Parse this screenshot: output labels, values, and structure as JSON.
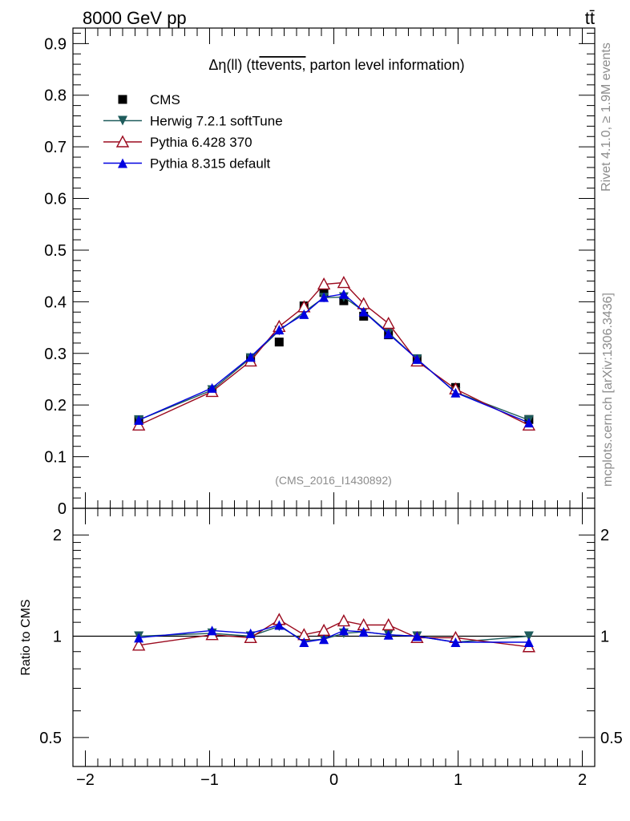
{
  "header": {
    "energy_label": "8000 GeV pp",
    "process_label": "tt̄"
  },
  "side": {
    "rivet_label": "Rivet 4.1.0, ≥ 1.9M events",
    "mcplots_label": "mcplots.cern.ch [arXiv:1306.3436]"
  },
  "chart_data": {
    "type": "line",
    "title_parts": {
      "prefix": "Δη(ll) (",
      "tt": "tt",
      "over": "events,",
      "suffix": " parton level information)"
    },
    "watermark": "(CMS_2016_I1430892)",
    "ratio_ylabel": "Ratio to CMS",
    "xlim": [
      -2.1,
      2.1
    ],
    "ylim_main": [
      0,
      0.93
    ],
    "ylim_ratio": [
      0.41,
      2.4
    ],
    "x_ticks": [
      "−2",
      "−1",
      "0",
      "1",
      "2"
    ],
    "x_tick_values": [
      -2,
      -1,
      0,
      1,
      2
    ],
    "y_ticks_main": [
      "0",
      "0.1",
      "0.2",
      "0.3",
      "0.4",
      "0.5",
      "0.6",
      "0.7",
      "0.8",
      "0.9"
    ],
    "y_tick_values_main": [
      0,
      0.1,
      0.2,
      0.3,
      0.4,
      0.5,
      0.6,
      0.7,
      0.8,
      0.9
    ],
    "y_ticks_ratio": [
      "0.5",
      "1",
      "2"
    ],
    "y_tick_values_ratio": [
      0.5,
      1,
      2
    ],
    "x": [
      -1.57,
      -0.98,
      -0.67,
      -0.44,
      -0.24,
      -0.08,
      0.08,
      0.24,
      0.44,
      0.67,
      0.98,
      1.57
    ],
    "series": [
      {
        "name": "CMS",
        "color": "#000000",
        "marker": "square",
        "line": false,
        "values": [
          0.171,
          0.225,
          0.29,
          0.322,
          0.392,
          0.418,
          0.402,
          0.372,
          0.336,
          0.288,
          0.234,
          0.172
        ],
        "ratio": [
          1,
          1,
          1,
          1,
          1,
          1,
          1,
          1,
          1,
          1,
          1,
          1
        ]
      },
      {
        "name": "Herwig 7.2.1 softTune",
        "color": "#1f5c5c",
        "marker": "triangle-down",
        "line": true,
        "values": [
          0.171,
          0.229,
          0.291,
          0.344,
          0.38,
          0.408,
          0.409,
          0.382,
          0.34,
          0.289,
          0.225,
          0.171
        ],
        "ratio": [
          1.0,
          1.02,
          1.0,
          1.07,
          0.97,
          0.98,
          1.02,
          1.03,
          1.01,
          1.0,
          0.96,
          1.0
        ]
      },
      {
        "name": "Pythia 6.428 370",
        "color": "#9b0a1e",
        "marker": "triangle-open",
        "line": true,
        "values": [
          0.161,
          0.226,
          0.285,
          0.352,
          0.39,
          0.434,
          0.437,
          0.396,
          0.358,
          0.285,
          0.231,
          0.161
        ],
        "ratio": [
          0.94,
          1.01,
          0.99,
          1.12,
          1.01,
          1.04,
          1.11,
          1.08,
          1.08,
          0.99,
          0.99,
          0.93
        ]
      },
      {
        "name": "Pythia 8.315 default",
        "color": "#0000e0",
        "marker": "triangle-up",
        "line": true,
        "values": [
          0.171,
          0.233,
          0.293,
          0.346,
          0.376,
          0.409,
          0.415,
          0.381,
          0.338,
          0.289,
          0.224,
          0.166
        ],
        "ratio": [
          0.99,
          1.04,
          1.02,
          1.08,
          0.96,
          0.98,
          1.04,
          1.03,
          1.01,
          1.0,
          0.96,
          0.96
        ]
      }
    ]
  }
}
